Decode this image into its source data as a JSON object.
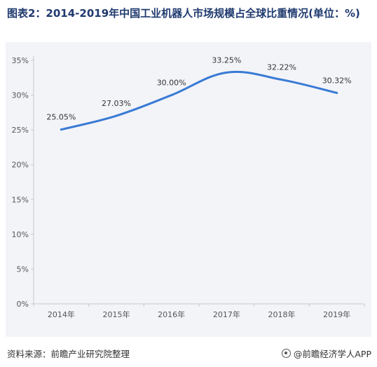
{
  "header": {
    "title": "图表2：2014-2019年中国工业机器人市场规模占全球比重情况(单位：%)"
  },
  "chart_data": {
    "type": "line",
    "title": "",
    "xlabel": "",
    "ylabel": "",
    "categories": [
      "2014年",
      "2015年",
      "2016年",
      "2017年",
      "2018年",
      "2019年"
    ],
    "series": [
      {
        "values": [
          25.05,
          27.03,
          30.0,
          33.25,
          32.22,
          30.32
        ]
      }
    ],
    "data_labels": [
      "25.05%",
      "27.03%",
      "30.00%",
      "33.25%",
      "32.22%",
      "30.32%"
    ],
    "y_ticks": [
      0,
      5,
      10,
      15,
      20,
      25,
      30,
      35
    ],
    "y_tick_labels": [
      "0%",
      "5%",
      "10%",
      "15%",
      "20%",
      "25%",
      "30%",
      "35%"
    ],
    "ylim": [
      0,
      35
    ],
    "grid": false,
    "line_style": "smooth",
    "line_color": "#3a7bd5"
  },
  "footer": {
    "source": "资料来源：前瞻产业研究院整理",
    "brand": "@前瞻经济学人APP"
  }
}
